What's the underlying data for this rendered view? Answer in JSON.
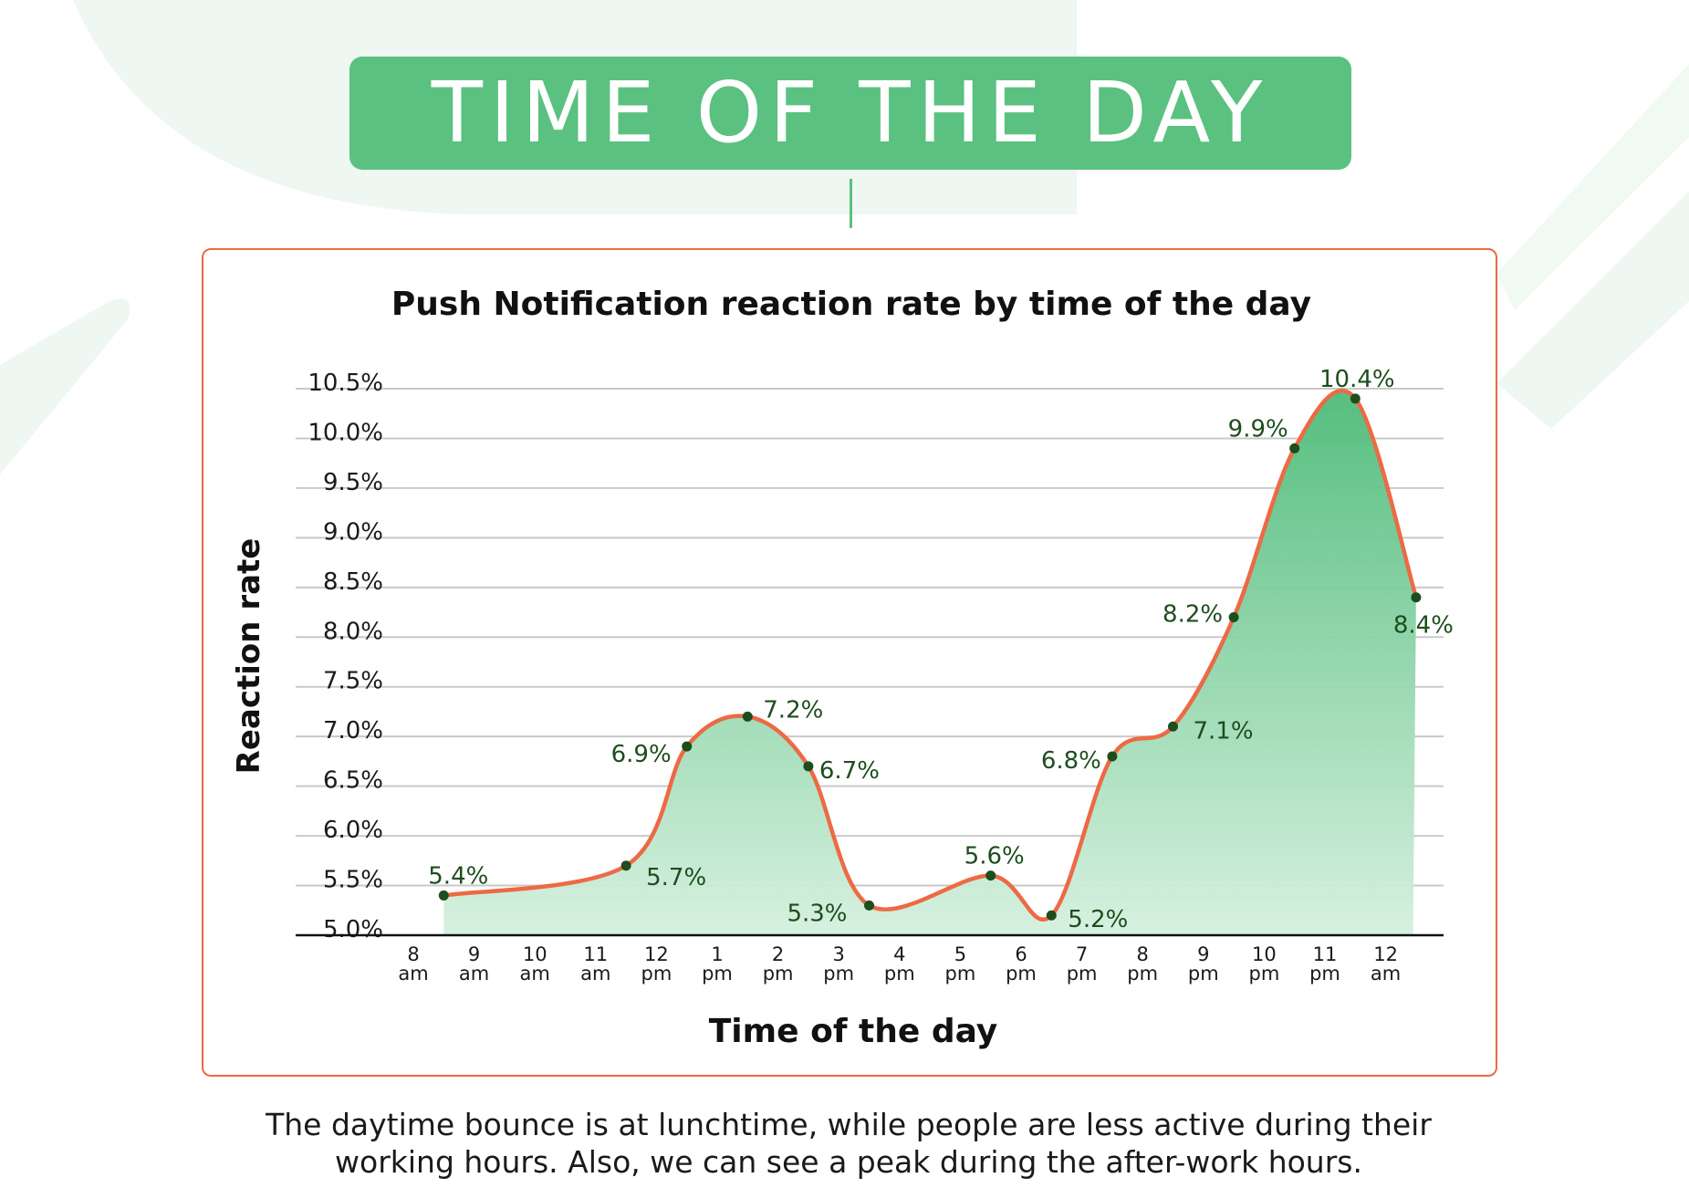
{
  "banner": {
    "title": "TIME OF THE DAY"
  },
  "colors": {
    "accent_green": "#5bc180",
    "line": "#ec6a45",
    "frame": "#ec6a45",
    "point": "#1e4d1e",
    "value_label": "#1e4d1e"
  },
  "chart_data": {
    "type": "area",
    "title": "Push Notification reaction rate by time of the day",
    "xlabel": "Time of the day",
    "ylabel": "Reaction rate",
    "ylim": [
      5.0,
      10.5
    ],
    "grid": true,
    "y_ticks": [
      "10.5%",
      "10.0%",
      "9.5%",
      "9.0%",
      "8.5%",
      "8.0%",
      "7.5%",
      "7.0%",
      "6.5%",
      "6.0%",
      "5.5%",
      "5.0%"
    ],
    "x_ticks": [
      [
        "8",
        "am"
      ],
      [
        "9",
        "am"
      ],
      [
        "10",
        "am"
      ],
      [
        "11",
        "am"
      ],
      [
        "12",
        "pm"
      ],
      [
        "1",
        "pm"
      ],
      [
        "2",
        "pm"
      ],
      [
        "3",
        "pm"
      ],
      [
        "4",
        "pm"
      ],
      [
        "5",
        "pm"
      ],
      [
        "6",
        "pm"
      ],
      [
        "7",
        "pm"
      ],
      [
        "8",
        "pm"
      ],
      [
        "9",
        "pm"
      ],
      [
        "10",
        "pm"
      ],
      [
        "11",
        "pm"
      ],
      [
        "12",
        "am"
      ]
    ],
    "points": [
      {
        "x": "8:30 am",
        "y": 5.4,
        "label": "5.4%"
      },
      {
        "x": "11:30 am",
        "y": 5.7,
        "label": "5.7%"
      },
      {
        "x": "12:30 pm",
        "y": 6.9,
        "label": "6.9%"
      },
      {
        "x": "1:30 pm",
        "y": 7.2,
        "label": "7.2%"
      },
      {
        "x": "2:30 pm",
        "y": 6.7,
        "label": "6.7%"
      },
      {
        "x": "3:30 pm",
        "y": 5.3,
        "label": "5.3%"
      },
      {
        "x": "5:30 pm",
        "y": 5.6,
        "label": "5.6%"
      },
      {
        "x": "6:30 pm",
        "y": 5.2,
        "label": "5.2%"
      },
      {
        "x": "7:30 pm",
        "y": 6.8,
        "label": "6.8%"
      },
      {
        "x": "8:30 pm",
        "y": 7.1,
        "label": "7.1%"
      },
      {
        "x": "9:30 pm",
        "y": 8.2,
        "label": "8.2%"
      },
      {
        "x": "10:30 pm",
        "y": 9.9,
        "label": "9.9%"
      },
      {
        "x": "11:30 pm",
        "y": 10.4,
        "label": "10.4%"
      },
      {
        "x": "12:30 am",
        "y": 8.4,
        "label": "8.4%"
      }
    ]
  },
  "caption": {
    "line1": "The daytime bounce is at lunchtime, while people are less active during their",
    "line2": "working hours. Also, we can see a peak during the after-work hours."
  }
}
